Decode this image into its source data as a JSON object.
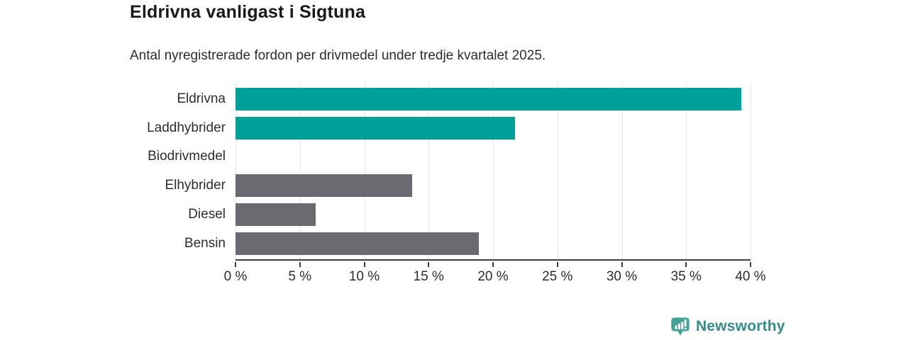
{
  "header": {
    "title": "Eldrivna vanligast i Sigtuna",
    "subtitle": "Antal nyregistrerade fordon per drivmedel under tredje kvartalet 2025."
  },
  "chart_data": {
    "type": "bar",
    "orientation": "horizontal",
    "title": "Eldrivna vanligast i Sigtuna",
    "subtitle": "Antal nyregistrerade fordon per drivmedel under tredje kvartalet 2025.",
    "categories": [
      "Eldrivna",
      "Laddhybrider",
      "Biodrivmedel",
      "Elhybrider",
      "Diesel",
      "Bensin"
    ],
    "values": [
      39.3,
      21.7,
      0,
      13.7,
      6.2,
      18.9
    ],
    "unit": "%",
    "bar_colors": [
      "#00a09a",
      "#00a09a",
      "#6c6a71",
      "#6c6a71",
      "#6c6a71",
      "#6c6a71"
    ],
    "highlight_color": "#00a09a",
    "default_color": "#6c6a71",
    "xlabel": "",
    "ylabel": "",
    "xlim": [
      0,
      40
    ],
    "x_ticks": [
      0,
      5,
      10,
      15,
      20,
      25,
      30,
      35,
      40
    ],
    "x_tick_labels": [
      "0 %",
      "5 %",
      "10 %",
      "15 %",
      "20 %",
      "25 %",
      "30 %",
      "35 %",
      "40 %"
    ],
    "grid": "vertical",
    "gridline_color": "#e4e4e4",
    "axis_color": "#3e3d40",
    "legend": "none"
  },
  "footer": {
    "brand": "Newsworthy",
    "brand_color": "#338c85",
    "logo_icon": "bar-chart-pin-icon",
    "logo_icon_color": "#43a296"
  }
}
